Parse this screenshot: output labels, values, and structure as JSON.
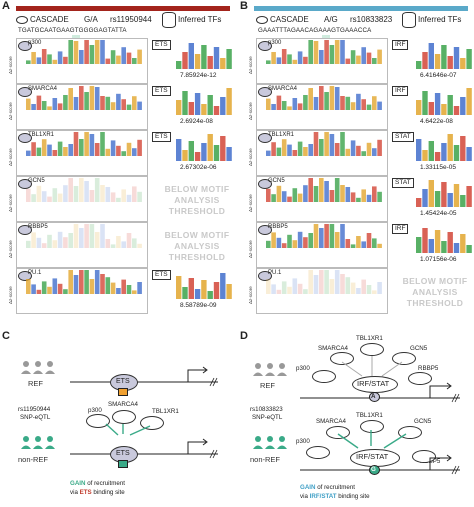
{
  "panel_a": {
    "label": "A",
    "assay": "CASCADE",
    "allele": "G/A",
    "snp": "rs11950944",
    "inferred": "Inferred TFs",
    "sequence": "TGATGCAATGAAGTGGGGAGTATTA",
    "ylabel": "Δz-score",
    "rows": [
      {
        "factor": "p300",
        "tf": "ETS",
        "pval": "7.85924e-12"
      },
      {
        "factor": "SMARCA4",
        "tf": "ETS",
        "pval": "2.6924e-08"
      },
      {
        "factor": "TBL1XR1",
        "tf": "ETS",
        "pval": "2.67302e-06"
      },
      {
        "factor": "GCN5",
        "tf": "",
        "pval": ""
      },
      {
        "factor": "RBBP5",
        "tf": "",
        "pval": ""
      },
      {
        "factor": "PU.1",
        "tf": "ETS",
        "pval": "8.58789e-09"
      }
    ],
    "below_text": "BELOW MOTIF ANALYSIS THRESHOLD"
  },
  "panel_b": {
    "label": "B",
    "assay": "CASCADE",
    "allele": "A/G",
    "snp": "rs10833823",
    "inferred": "Inferred TFs",
    "sequence": "GAAATTTAGAACAGAAAGTGAAACCA",
    "ylabel": "Δz-score",
    "rows": [
      {
        "factor": "p300",
        "tf": "IRF",
        "pval": "6.41646e-07"
      },
      {
        "factor": "SMARCA4",
        "tf": "IRF",
        "pval": "4.6422e-08"
      },
      {
        "factor": "TBL1XR1",
        "tf": "STAT",
        "pval": "1.33115e-05"
      },
      {
        "factor": "GCN5",
        "tf": "STAT",
        "pval": "1.45424e-05"
      },
      {
        "factor": "RBBP5",
        "tf": "IRF",
        "pval": "1.07156e-06"
      },
      {
        "factor": "PU.1",
        "tf": "",
        "pval": ""
      }
    ],
    "below_text": "BELOW MOTIF ANALYSIS THRESHOLD"
  },
  "panel_c": {
    "label": "C",
    "ref": "REF",
    "snp": "rs11950944",
    "snp_type": "SNP-eQTL",
    "nonref": "non-REF",
    "tf": "ETS",
    "ref_base": "G",
    "alt_base": "A",
    "cofactors": [
      "p300",
      "SMARCA4",
      "TBL1XR1"
    ],
    "gain_word": "GAIN",
    "gain_rest": " of recruitment",
    "via": "via ",
    "via_tf": "ETS",
    "via_rest": " binding site"
  },
  "panel_d": {
    "label": "D",
    "ref": "REF",
    "snp": "rs10833823",
    "snp_type": "SNP-eQTL",
    "nonref": "non-REF",
    "tf": "IRF/STAT",
    "ref_base": "A",
    "alt_base": "G",
    "cofactors_ref": [
      "SMARCA4",
      "TBL1XR1",
      "GCN5",
      "p300",
      "RBBP5"
    ],
    "cofactors_alt": [
      "SMARCA4",
      "TBL1XR1",
      "GCN5",
      "p300",
      "RBBP5"
    ],
    "gain_word": "GAIN",
    "gain_rest": " of recruitment",
    "via": "via ",
    "via_tf": "IRF/STAT",
    "via_rest": " binding site"
  },
  "colors": {
    "red_bar": "#a3241c",
    "blue_bar": "#5aa9c9",
    "teal": "#3aaa88",
    "ets_red": "#c0392b",
    "irf_blue": "#3f9fc6"
  }
}
